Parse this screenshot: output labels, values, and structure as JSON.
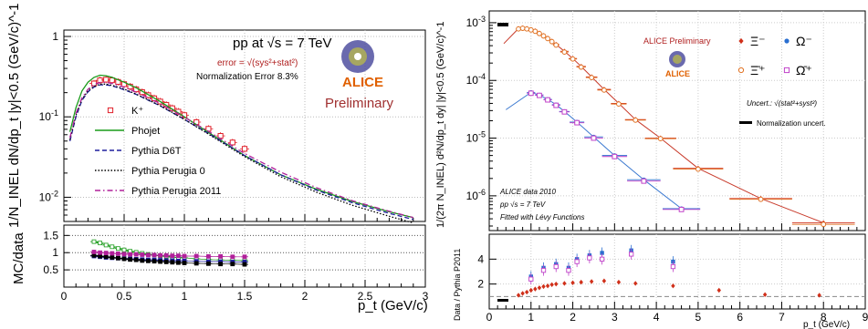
{
  "chart_data": [
    {
      "type": "line",
      "panel": "left-top",
      "title": "",
      "ylabel": "1/N_INEL dN/dp_t |y|<0.5 (GeV/c)^-1",
      "yscale": "log",
      "xlim": [
        0,
        3
      ],
      "ylim": [
        0.005,
        1.2
      ],
      "yticks": [
        "10^-2",
        "10^-1",
        "1"
      ],
      "grid": true,
      "annotations": {
        "system": "pp at √s = 7 TeV",
        "error": "error = √(sys²+stat²)",
        "norm": "Normalization Error 8.3%",
        "logo": "ALICE",
        "prelim": "Preliminary"
      },
      "legend": {
        "position": "bottom-left",
        "entries": [
          "K⁺",
          "Phojet",
          "Pythia D6T",
          "Pythia Perugia 0",
          "Pythia Perugia 2011"
        ]
      },
      "series": [
        {
          "name": "K⁺",
          "color": "#e0202a",
          "style": "open-square",
          "x": [
            0.25,
            0.3,
            0.35,
            0.4,
            0.45,
            0.5,
            0.55,
            0.6,
            0.65,
            0.7,
            0.75,
            0.8,
            0.85,
            0.9,
            0.95,
            1.0,
            1.1,
            1.2,
            1.3,
            1.4,
            1.5
          ],
          "y": [
            0.26,
            0.285,
            0.29,
            0.285,
            0.272,
            0.255,
            0.238,
            0.22,
            0.203,
            0.186,
            0.17,
            0.155,
            0.141,
            0.128,
            0.116,
            0.105,
            0.086,
            0.071,
            0.058,
            0.048,
            0.04
          ]
        },
        {
          "name": "Phojet",
          "color": "#1a9b1a",
          "style": "solid",
          "x": [
            0.05,
            0.1,
            0.15,
            0.2,
            0.25,
            0.3,
            0.35,
            0.4,
            0.5,
            0.6,
            0.8,
            1.0,
            1.2,
            1.5,
            1.8,
            2.1,
            2.4,
            2.7,
            2.9
          ],
          "y": [
            0.065,
            0.13,
            0.21,
            0.27,
            0.31,
            0.33,
            0.325,
            0.31,
            0.27,
            0.23,
            0.155,
            0.1,
            0.064,
            0.033,
            0.019,
            0.0125,
            0.0088,
            0.0066,
            0.0056
          ]
        },
        {
          "name": "Pythia D6T",
          "color": "#1e1e9e",
          "style": "dashed",
          "x": [
            0.05,
            0.1,
            0.15,
            0.2,
            0.25,
            0.3,
            0.35,
            0.4,
            0.5,
            0.6,
            0.8,
            1.0,
            1.2,
            1.5,
            1.8,
            2.1,
            2.4,
            2.7,
            2.9
          ],
          "y": [
            0.05,
            0.1,
            0.16,
            0.205,
            0.235,
            0.25,
            0.25,
            0.243,
            0.218,
            0.19,
            0.137,
            0.093,
            0.062,
            0.033,
            0.019,
            0.0122,
            0.0085,
            0.0063,
            0.0053
          ]
        },
        {
          "name": "Pythia Perugia 0",
          "color": "#000000",
          "style": "dotted",
          "x": [
            0.05,
            0.1,
            0.15,
            0.2,
            0.25,
            0.3,
            0.35,
            0.4,
            0.5,
            0.6,
            0.8,
            1.0,
            1.2,
            1.5,
            1.8,
            2.1,
            2.4,
            2.7,
            2.9
          ],
          "y": [
            0.052,
            0.105,
            0.165,
            0.21,
            0.24,
            0.255,
            0.255,
            0.247,
            0.222,
            0.192,
            0.138,
            0.093,
            0.061,
            0.032,
            0.018,
            0.0115,
            0.0079,
            0.0058,
            0.0048
          ]
        },
        {
          "name": "Pythia Perugia 2011",
          "color": "#b0209a",
          "style": "dash-dot",
          "x": [
            0.05,
            0.1,
            0.15,
            0.2,
            0.25,
            0.3,
            0.35,
            0.4,
            0.5,
            0.6,
            0.8,
            1.0,
            1.2,
            1.5,
            1.8,
            2.1,
            2.4,
            2.7,
            2.9
          ],
          "y": [
            0.055,
            0.11,
            0.172,
            0.22,
            0.252,
            0.268,
            0.268,
            0.26,
            0.234,
            0.203,
            0.146,
            0.099,
            0.066,
            0.035,
            0.0205,
            0.0131,
            0.009,
            0.0067,
            0.0056
          ]
        }
      ]
    },
    {
      "type": "scatter",
      "panel": "left-bottom",
      "xlabel": "p_t (GeV/c)",
      "ylabel": "MC/data",
      "xlim": [
        0,
        3
      ],
      "ylim": [
        0,
        1.8
      ],
      "xticks": [
        "0",
        "0.5",
        "1",
        "1.5",
        "2",
        "2.5",
        "3"
      ],
      "yticks": [
        "0.5",
        "1",
        "1.5"
      ],
      "grid": true,
      "x": [
        0.25,
        0.3,
        0.35,
        0.4,
        0.45,
        0.5,
        0.55,
        0.6,
        0.65,
        0.7,
        0.75,
        0.8,
        0.85,
        0.9,
        0.95,
        1.0,
        1.1,
        1.2,
        1.3,
        1.4,
        1.5
      ],
      "series": [
        {
          "name": "Phojet",
          "color": "#1a9b1a",
          "values": [
            1.32,
            1.28,
            1.22,
            1.17,
            1.12,
            1.08,
            1.04,
            1.01,
            0.98,
            0.95,
            0.93,
            0.91,
            0.89,
            0.87,
            0.86,
            0.85,
            0.82,
            0.8,
            0.79,
            0.78,
            0.77
          ]
        },
        {
          "name": "Pythia D6T",
          "color": "#1e1e9e",
          "values": [
            0.9,
            0.88,
            0.86,
            0.85,
            0.84,
            0.83,
            0.82,
            0.81,
            0.8,
            0.79,
            0.79,
            0.78,
            0.77,
            0.77,
            0.76,
            0.76,
            0.75,
            0.74,
            0.74,
            0.73,
            0.73
          ]
        },
        {
          "name": "Pythia Perugia 0",
          "color": "#000000",
          "values": [
            0.92,
            0.9,
            0.88,
            0.86,
            0.84,
            0.82,
            0.8,
            0.79,
            0.77,
            0.76,
            0.75,
            0.74,
            0.73,
            0.72,
            0.71,
            0.7,
            0.69,
            0.68,
            0.67,
            0.67,
            0.66
          ]
        },
        {
          "name": "Pythia Perugia 2011",
          "color": "#b0209a",
          "values": [
            1.02,
            1.0,
            0.99,
            0.98,
            0.97,
            0.96,
            0.95,
            0.95,
            0.94,
            0.93,
            0.93,
            0.92,
            0.92,
            0.91,
            0.91,
            0.9,
            0.9,
            0.89,
            0.89,
            0.88,
            0.88
          ]
        }
      ]
    },
    {
      "type": "scatter",
      "panel": "right-top",
      "ylabel": "1/(2π N_INEL) d²N/dp_t dy| |y|<0.5 (GeV/c)^-1",
      "yscale": "log",
      "xlim": [
        0,
        9
      ],
      "ylim": [
        2.5e-07,
        0.0016
      ],
      "yticks": [
        "10^-6",
        "10^-5",
        "10^-4",
        "10^-3"
      ],
      "grid": true,
      "annotations": {
        "prelim": "ALICE Preliminary",
        "uncert": "Uncert.: √(stat²+syst²)",
        "norm": "Normalization uncert.",
        "data": "ALICE data 2010",
        "system": "pp √s = 7 TeV",
        "fit": "Fitted with Lévy Functions",
        "logo": "ALICE"
      },
      "legend": {
        "position": "top-right",
        "entries": [
          "Ξ⁻",
          "Ω⁻",
          "Ξ̄⁺",
          "Ω̄⁺"
        ]
      },
      "series": [
        {
          "name": "Ξ⁻",
          "color": "#d0301a",
          "style": "filled-diamond",
          "x": [
            0.7,
            0.8,
            0.9,
            1.0,
            1.1,
            1.2,
            1.3,
            1.4,
            1.5,
            1.6,
            1.8,
            2.0,
            2.2,
            2.45,
            2.75,
            3.1,
            3.5,
            4.1,
            5.0,
            6.5,
            8.0
          ],
          "y": [
            0.00079,
            0.00081,
            0.00079,
            0.00076,
            0.00072,
            0.00066,
            0.0006,
            0.00054,
            0.00048,
            0.00042,
            0.00032,
            0.00024,
            0.000175,
            0.000115,
            7e-05,
            4e-05,
            2.1e-05,
            1e-05,
            3e-06,
            9e-07,
            3.4e-07
          ]
        },
        {
          "name": "Ξ̄⁺",
          "color": "#e07020",
          "style": "open-circle",
          "x": [
            0.7,
            0.8,
            0.9,
            1.0,
            1.1,
            1.2,
            1.3,
            1.4,
            1.5,
            1.6,
            1.8,
            2.0,
            2.2,
            2.45,
            2.75,
            3.1,
            3.5,
            4.1,
            5.0,
            6.5,
            8.0
          ],
          "y": [
            0.00078,
            0.0008,
            0.00078,
            0.00075,
            0.00071,
            0.00065,
            0.00059,
            0.00053,
            0.00047,
            0.00041,
            0.00031,
            0.000235,
            0.00017,
            0.000112,
            6.8e-05,
            3.9e-05,
            2.05e-05,
            9.8e-06,
            2.9e-06,
            8.7e-07,
            3.2e-07
          ]
        },
        {
          "name": "Ω⁻",
          "color": "#2a6fd0",
          "style": "filled-circle",
          "x": [
            1.0,
            1.2,
            1.4,
            1.6,
            1.8,
            2.1,
            2.5,
            3.0,
            3.7,
            4.6
          ],
          "y": [
            6.2e-05,
            5.6e-05,
            4.7e-05,
            3.8e-05,
            2.9e-05,
            1.9e-05,
            1.05e-05,
            5e-06,
            1.9e-06,
            6e-07
          ]
        },
        {
          "name": "Ω̄⁺",
          "color": "#c040c8",
          "style": "open-square",
          "x": [
            1.0,
            1.2,
            1.4,
            1.6,
            1.8,
            2.1,
            2.5,
            3.0,
            3.7,
            4.6
          ],
          "y": [
            6e-05,
            5.5e-05,
            4.6e-05,
            3.7e-05,
            2.85e-05,
            1.85e-05,
            1e-05,
            4.8e-06,
            1.8e-06,
            5.8e-07
          ]
        }
      ]
    },
    {
      "type": "scatter",
      "panel": "right-bottom",
      "xlabel": "p_t (GeV/c)",
      "ylabel": "Data / Pythia P2011",
      "xlim": [
        0,
        9
      ],
      "ylim": [
        0,
        6
      ],
      "xticks": [
        "0",
        "1",
        "2",
        "3",
        "4",
        "5",
        "6",
        "7",
        "8",
        "9"
      ],
      "yticks": [
        "2",
        "4"
      ],
      "grid": true,
      "reference_line": 1,
      "series": [
        {
          "name": "Ξ⁻",
          "color": "#d0301a",
          "x": [
            0.7,
            0.8,
            0.9,
            1.0,
            1.1,
            1.2,
            1.3,
            1.4,
            1.5,
            1.6,
            1.8,
            2.0,
            2.2,
            2.45,
            2.75,
            3.1,
            3.5,
            4.4,
            5.5,
            6.6,
            7.9
          ],
          "values": [
            1.1,
            1.25,
            1.35,
            1.5,
            1.6,
            1.7,
            1.8,
            1.85,
            1.95,
            2.0,
            2.05,
            2.1,
            2.15,
            2.2,
            2.25,
            2.15,
            2.05,
            1.85,
            1.5,
            1.15,
            1.1
          ]
        },
        {
          "name": "Ω⁻",
          "color": "#2a6fd0",
          "x": [
            1.0,
            1.3,
            1.6,
            1.9,
            2.1,
            2.4,
            2.7,
            3.4,
            4.4
          ],
          "values": [
            2.6,
            3.3,
            3.6,
            3.3,
            4.0,
            4.3,
            4.5,
            4.7,
            3.8
          ]
        },
        {
          "name": "Ω̄⁺",
          "color": "#c040c8",
          "x": [
            1.0,
            1.3,
            1.6,
            1.9,
            2.1,
            2.4,
            2.7,
            3.4,
            4.4
          ],
          "values": [
            2.4,
            3.1,
            3.4,
            3.1,
            3.8,
            4.1,
            4.0,
            4.4,
            3.4
          ]
        }
      ]
    }
  ]
}
